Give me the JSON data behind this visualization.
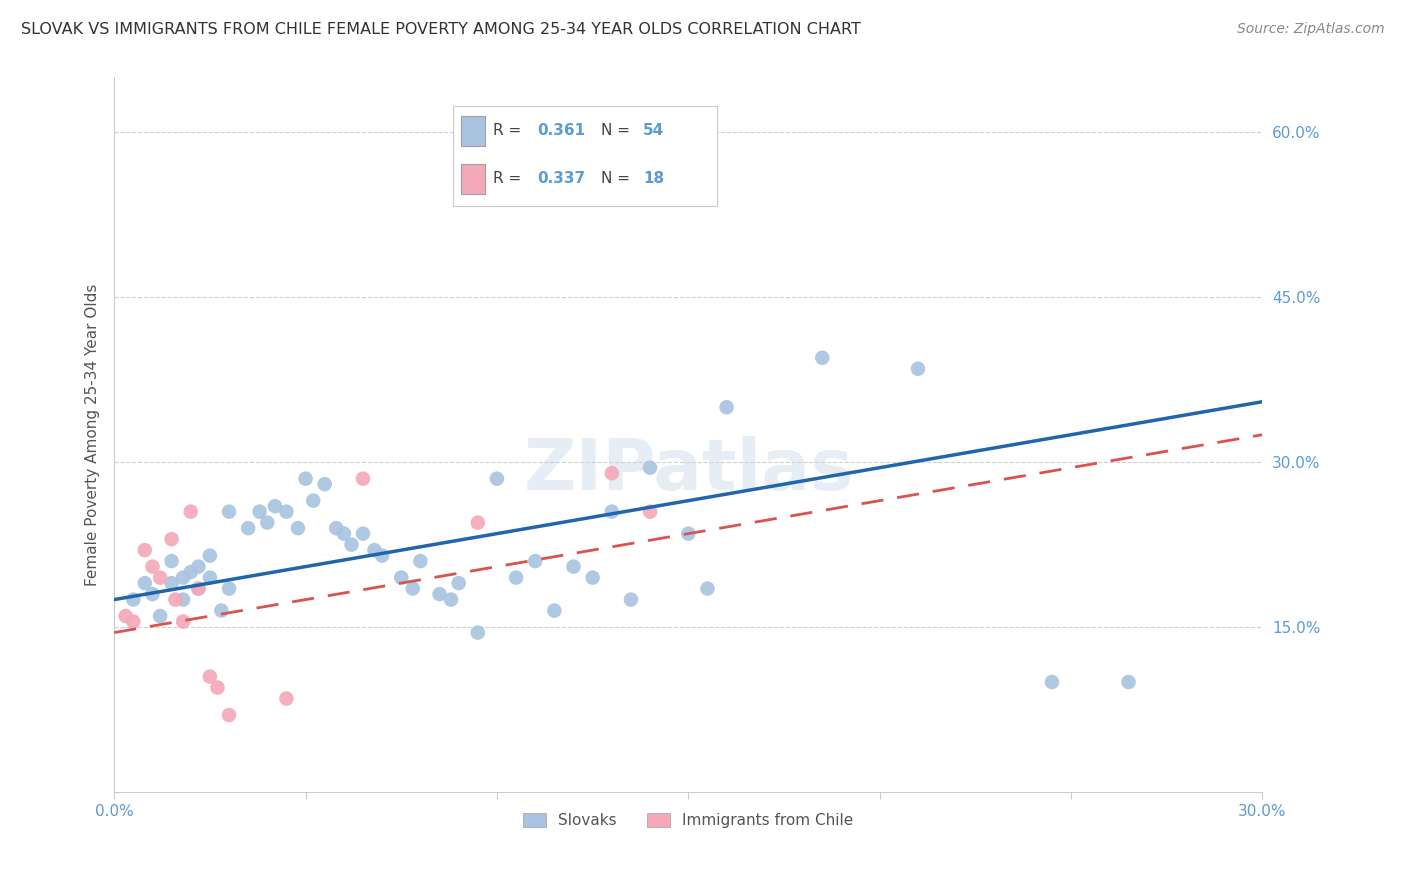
{
  "title": "SLOVAK VS IMMIGRANTS FROM CHILE FEMALE POVERTY AMONG 25-34 YEAR OLDS CORRELATION CHART",
  "source": "Source: ZipAtlas.com",
  "ylabel": "Female Poverty Among 25-34 Year Olds",
  "xlim": [
    0.0,
    0.3
  ],
  "ylim": [
    0.0,
    0.65
  ],
  "xticks": [
    0.0,
    0.05,
    0.1,
    0.15,
    0.2,
    0.25,
    0.3
  ],
  "xtick_labels": [
    "0.0%",
    "",
    "",
    "",
    "",
    "",
    "30.0%"
  ],
  "yticks_right": [
    0.15,
    0.3,
    0.45,
    0.6
  ],
  "ytick_labels_right": [
    "15.0%",
    "30.0%",
    "45.0%",
    "60.0%"
  ],
  "R_slovak": 0.361,
  "N_slovak": 54,
  "R_chile": 0.337,
  "N_chile": 18,
  "slovak_color": "#a8c4e0",
  "chile_color": "#f4a8b8",
  "trend_slovak_color": "#2166ac",
  "trend_chile_color": "#d9534f",
  "background_color": "#ffffff",
  "grid_color": "#d0d0d0",
  "watermark": "ZIPatlas",
  "slovak_x": [
    0.005,
    0.008,
    0.01,
    0.012,
    0.015,
    0.015,
    0.018,
    0.018,
    0.02,
    0.022,
    0.022,
    0.025,
    0.025,
    0.028,
    0.03,
    0.03,
    0.035,
    0.038,
    0.04,
    0.042,
    0.045,
    0.048,
    0.05,
    0.052,
    0.055,
    0.058,
    0.06,
    0.062,
    0.065,
    0.068,
    0.07,
    0.075,
    0.078,
    0.08,
    0.085,
    0.088,
    0.09,
    0.095,
    0.1,
    0.105,
    0.11,
    0.115,
    0.12,
    0.125,
    0.13,
    0.135,
    0.14,
    0.15,
    0.155,
    0.16,
    0.185,
    0.21,
    0.245,
    0.265
  ],
  "slovak_y": [
    0.175,
    0.19,
    0.18,
    0.16,
    0.21,
    0.19,
    0.195,
    0.175,
    0.2,
    0.205,
    0.185,
    0.215,
    0.195,
    0.165,
    0.255,
    0.185,
    0.24,
    0.255,
    0.245,
    0.26,
    0.255,
    0.24,
    0.285,
    0.265,
    0.28,
    0.24,
    0.235,
    0.225,
    0.235,
    0.22,
    0.215,
    0.195,
    0.185,
    0.21,
    0.18,
    0.175,
    0.19,
    0.145,
    0.285,
    0.195,
    0.21,
    0.165,
    0.205,
    0.195,
    0.255,
    0.175,
    0.295,
    0.235,
    0.185,
    0.35,
    0.395,
    0.385,
    0.1,
    0.1
  ],
  "chile_x": [
    0.003,
    0.005,
    0.008,
    0.01,
    0.012,
    0.015,
    0.016,
    0.018,
    0.02,
    0.022,
    0.025,
    0.027,
    0.03,
    0.045,
    0.065,
    0.095,
    0.13,
    0.14
  ],
  "chile_y": [
    0.16,
    0.155,
    0.22,
    0.205,
    0.195,
    0.23,
    0.175,
    0.155,
    0.255,
    0.185,
    0.105,
    0.095,
    0.07,
    0.085,
    0.285,
    0.245,
    0.29,
    0.255
  ],
  "trend_slovak_x0": 0.0,
  "trend_slovak_y0": 0.175,
  "trend_slovak_x1": 0.3,
  "trend_slovak_y1": 0.355,
  "trend_chile_x0": 0.0,
  "trend_chile_y0": 0.145,
  "trend_chile_x1": 0.3,
  "trend_chile_y1": 0.325,
  "legend_slovak_label": "Slovaks",
  "legend_chile_label": "Immigrants from Chile"
}
